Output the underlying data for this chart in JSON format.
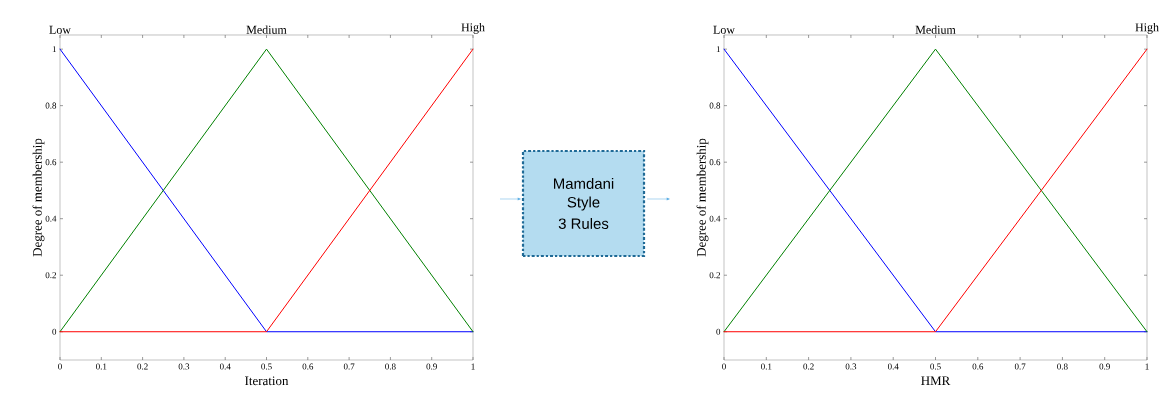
{
  "chart_data": [
    {
      "type": "line",
      "xlabel": "Iteration",
      "ylabel": "Degree of membership",
      "x": [
        0,
        0.5,
        1
      ],
      "xlim": [
        0,
        1
      ],
      "ylim": [
        -0.1,
        1.05
      ],
      "xticks": [
        0,
        0.1,
        0.2,
        0.3,
        0.4,
        0.5,
        0.6,
        0.7,
        0.8,
        0.9,
        1
      ],
      "yticks": [
        0,
        0.2,
        0.4,
        0.6,
        0.8,
        1
      ],
      "series": [
        {
          "name": "Low",
          "color": "#0000ff",
          "values": [
            1,
            0,
            0
          ]
        },
        {
          "name": "Medium",
          "color": "#008000",
          "values": [
            0,
            1,
            0
          ]
        },
        {
          "name": "High",
          "color": "#ff0000",
          "values": [
            0,
            0,
            1
          ]
        }
      ]
    },
    {
      "type": "other",
      "annotations": [
        "Mamdani",
        "Style",
        "3 Rules"
      ]
    },
    {
      "type": "line",
      "xlabel": "HMR",
      "ylabel": "Degree of membership",
      "x": [
        0,
        0.5,
        1
      ],
      "xlim": [
        0,
        1
      ],
      "ylim": [
        -0.1,
        1.05
      ],
      "xticks": [
        0,
        0.1,
        0.2,
        0.3,
        0.4,
        0.5,
        0.6,
        0.7,
        0.8,
        0.9,
        1
      ],
      "yticks": [
        0,
        0.2,
        0.4,
        0.6,
        0.8,
        1
      ],
      "series": [
        {
          "name": "Low",
          "color": "#0000ff",
          "values": [
            1,
            0,
            0
          ]
        },
        {
          "name": "Medium",
          "color": "#008000",
          "values": [
            0,
            1,
            0
          ]
        },
        {
          "name": "High",
          "color": "#ff0000",
          "values": [
            0,
            0,
            1
          ]
        }
      ]
    }
  ]
}
